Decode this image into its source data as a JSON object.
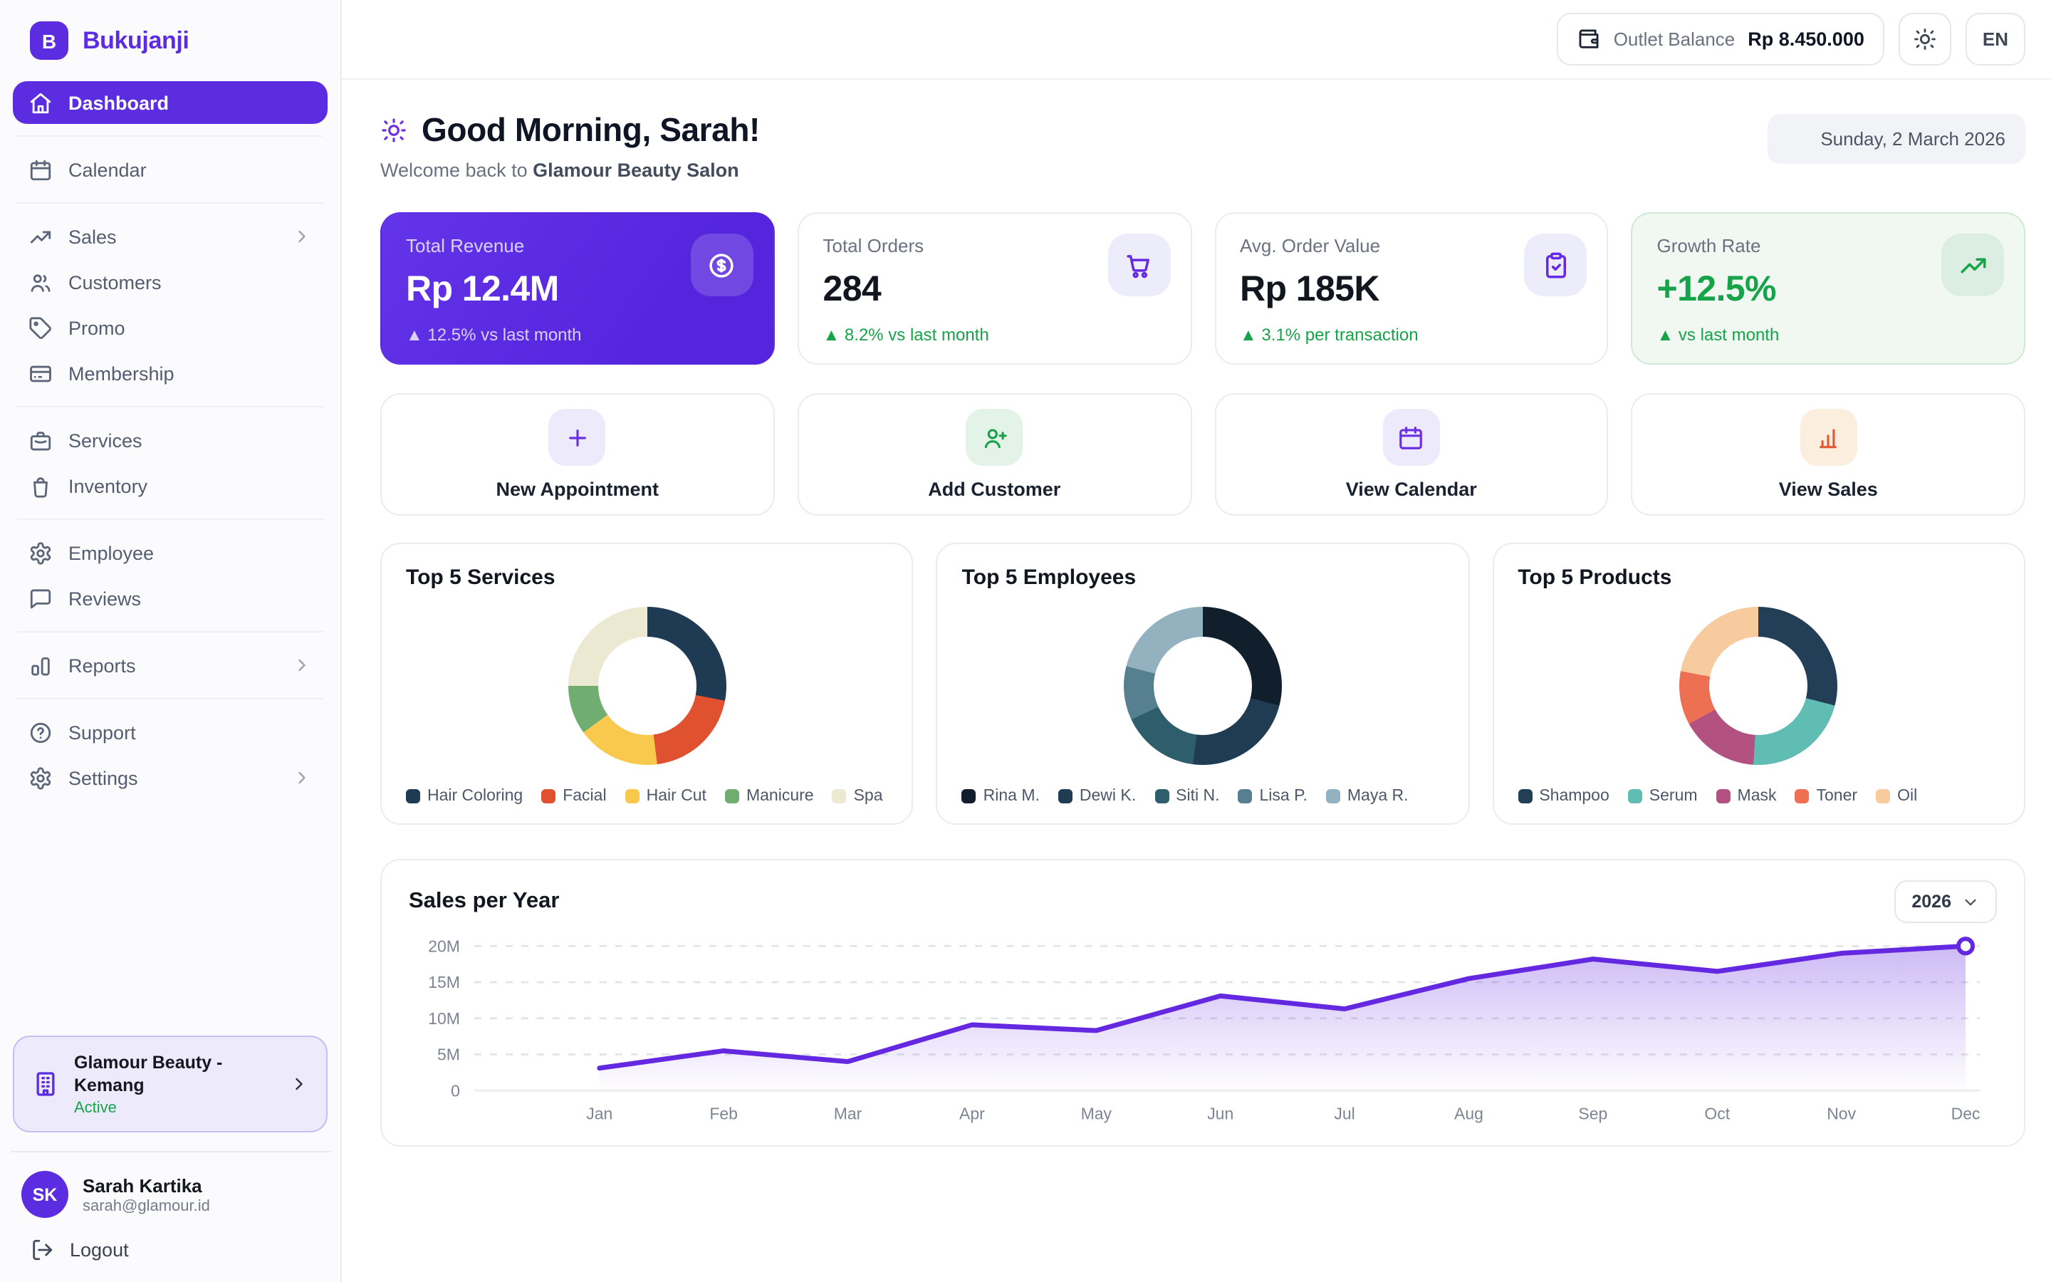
{
  "brand": {
    "name": "Bukujanji",
    "logo_letter": "B",
    "color": "#5B2CE0"
  },
  "topbar": {
    "balance_label": "Outlet Balance",
    "balance_value": "Rp 8.450.000",
    "language": "EN"
  },
  "header": {
    "greeting": "Good Morning, Sarah!",
    "welcome_prefix": "Welcome back to ",
    "salon_name": "Glamour Beauty Salon",
    "date": "Sunday, 2 March 2026"
  },
  "sidebar": {
    "groups": [
      {
        "items": [
          {
            "label": "Dashboard",
            "icon": "home",
            "active": true
          }
        ]
      },
      {
        "items": [
          {
            "label": "Calendar",
            "icon": "calendar"
          }
        ]
      },
      {
        "items": [
          {
            "label": "Sales",
            "icon": "trending",
            "chevron": true
          },
          {
            "label": "Customers",
            "icon": "users"
          },
          {
            "label": "Promo",
            "icon": "tag"
          },
          {
            "label": "Membership",
            "icon": "card"
          }
        ]
      },
      {
        "items": [
          {
            "label": "Services",
            "icon": "briefcase"
          },
          {
            "label": "Inventory",
            "icon": "bag"
          }
        ]
      },
      {
        "items": [
          {
            "label": "Employee",
            "icon": "gear"
          },
          {
            "label": "Reviews",
            "icon": "message"
          }
        ]
      },
      {
        "items": [
          {
            "label": "Reports",
            "icon": "report-bars",
            "chevron": true
          }
        ]
      },
      {
        "items": [
          {
            "label": "Support",
            "icon": "help"
          },
          {
            "label": "Settings",
            "icon": "gear",
            "chevron": true
          }
        ]
      }
    ],
    "outlet": {
      "name": "Glamour Beauty - Kemang",
      "status": "Active"
    },
    "user": {
      "initials": "SK",
      "name": "Sarah Kartika",
      "email": "sarah@glamour.id"
    },
    "logout_label": "Logout"
  },
  "stats": [
    {
      "label": "Total Revenue",
      "value": "Rp 12.4M",
      "delta": "▲ 12.5% vs last month",
      "icon": "dollar-circle",
      "variant": "purple"
    },
    {
      "label": "Total Orders",
      "value": "284",
      "delta": "▲ 8.2% vs last month",
      "icon": "cart",
      "variant": "white"
    },
    {
      "label": "Avg. Order Value",
      "value": "Rp 185K",
      "delta": "▲ 3.1% per transaction",
      "icon": "clipboard-check",
      "variant": "white"
    },
    {
      "label": "Growth Rate",
      "value": "+12.5%",
      "delta": "▲ vs last month",
      "icon": "trending",
      "variant": "green"
    }
  ],
  "quick_actions": [
    {
      "label": "New Appointment",
      "icon": "plus",
      "fg": "#6B2FE3",
      "bg": "#EDEBFB"
    },
    {
      "label": "Add Customer",
      "icon": "user-plus",
      "fg": "#18A24B",
      "bg": "#E4F3E7"
    },
    {
      "label": "View Calendar",
      "icon": "calendar",
      "fg": "#6B2FE3",
      "bg": "#EDEBFB"
    },
    {
      "label": "View Sales",
      "icon": "sales-bars",
      "fg": "#E25B33",
      "bg": "#FCEEDF"
    }
  ],
  "chart_data": [
    {
      "type": "pie",
      "donut": true,
      "title": "Top 5 Services",
      "labels": [
        "Hair Coloring",
        "Facial",
        "Hair Cut",
        "Manicure",
        "Spa"
      ],
      "values": [
        28,
        20,
        17,
        10,
        25
      ],
      "colors": [
        "#1F3A53",
        "#E0522F",
        "#F9C94D",
        "#6FAD71",
        "#ECE9D3"
      ],
      "legend_position": "bottom"
    },
    {
      "type": "pie",
      "donut": true,
      "title": "Top 5 Employees",
      "labels": [
        "Rina M.",
        "Dewi K.",
        "Siti N.",
        "Lisa P.",
        "Maya R."
      ],
      "values": [
        29,
        23,
        16,
        11,
        21
      ],
      "colors": [
        "#101F2B",
        "#1F3C53",
        "#2E5D6C",
        "#568090",
        "#94B1C0"
      ],
      "legend_position": "bottom"
    },
    {
      "type": "pie",
      "donut": true,
      "title": "Top 5 Products",
      "labels": [
        "Shampoo",
        "Serum",
        "Mask",
        "Toner",
        "Oil"
      ],
      "values": [
        29,
        22,
        16,
        11,
        22
      ],
      "colors": [
        "#233F58",
        "#5FBDB3",
        "#B35280",
        "#EE7052",
        "#F8CB9F"
      ],
      "legend_position": "bottom"
    },
    {
      "type": "area",
      "title": "Sales per Year",
      "year_selector": "2026",
      "x": [
        "Jan",
        "Feb",
        "Mar",
        "Apr",
        "May",
        "Jun",
        "Jul",
        "Aug",
        "Sep",
        "Oct",
        "Nov",
        "Dec"
      ],
      "values_millions": [
        3.1,
        5.5,
        4.0,
        9.1,
        8.3,
        13.1,
        11.3,
        15.5,
        18.2,
        16.5,
        19.0,
        20.0
      ],
      "y_ticks": [
        "0",
        "5M",
        "10M",
        "15M",
        "20M"
      ],
      "ylim": [
        0,
        20
      ],
      "line_color": "#6428E0",
      "grid": "dashed-horizontal",
      "last_point_marker": true
    }
  ]
}
